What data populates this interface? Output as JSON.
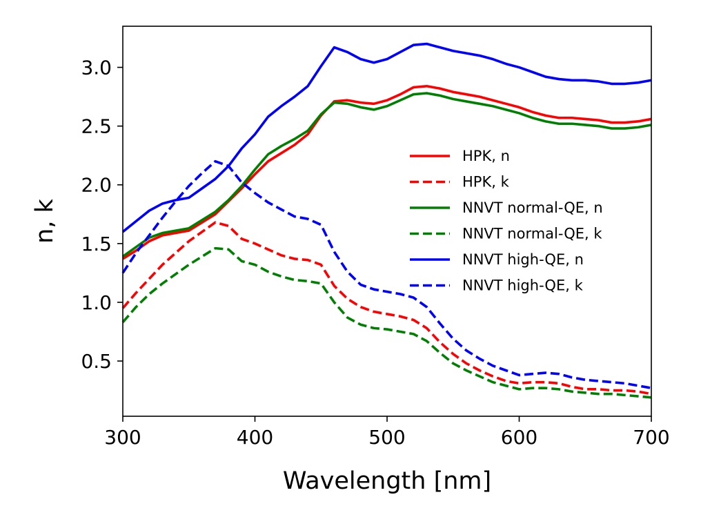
{
  "chart_data": {
    "type": "line",
    "title": "",
    "xlabel": "Wavelength [nm]",
    "ylabel": "n, k",
    "xlim": [
      300,
      700
    ],
    "ylim": [
      0.03,
      3.35
    ],
    "xticks": [
      300,
      400,
      500,
      600,
      700
    ],
    "xtick_labels": [
      "300",
      "400",
      "500",
      "600",
      "700"
    ],
    "yticks": [
      0.5,
      1.0,
      1.5,
      2.0,
      2.5,
      3.0
    ],
    "ytick_labels": [
      "0.5",
      "1.0",
      "1.5",
      "2.0",
      "2.5",
      "3.0"
    ],
    "grid": false,
    "legend_position": "center-right",
    "series": [
      {
        "name": "HPK, n",
        "color": "#ff0000",
        "style": "solid",
        "x": [
          300,
          310,
          320,
          330,
          340,
          350,
          360,
          370,
          380,
          390,
          400,
          410,
          420,
          430,
          440,
          450,
          460,
          470,
          480,
          490,
          500,
          510,
          520,
          530,
          540,
          550,
          560,
          570,
          580,
          590,
          600,
          610,
          620,
          630,
          640,
          650,
          660,
          670,
          680,
          690,
          700
        ],
        "y": [
          1.37,
          1.44,
          1.52,
          1.57,
          1.59,
          1.61,
          1.68,
          1.75,
          1.86,
          1.97,
          2.09,
          2.2,
          2.27,
          2.34,
          2.43,
          2.59,
          2.71,
          2.72,
          2.7,
          2.69,
          2.72,
          2.77,
          2.83,
          2.84,
          2.82,
          2.79,
          2.77,
          2.75,
          2.72,
          2.69,
          2.66,
          2.62,
          2.59,
          2.57,
          2.57,
          2.56,
          2.55,
          2.53,
          2.53,
          2.54,
          2.56
        ]
      },
      {
        "name": "HPK, k",
        "color": "#ff0000",
        "style": "dashed",
        "x": [
          300,
          310,
          320,
          330,
          340,
          350,
          360,
          370,
          380,
          390,
          400,
          410,
          420,
          430,
          440,
          450,
          460,
          470,
          480,
          490,
          500,
          510,
          520,
          530,
          540,
          550,
          560,
          570,
          580,
          590,
          600,
          610,
          620,
          630,
          640,
          650,
          660,
          670,
          680,
          690,
          700
        ],
        "y": [
          0.95,
          1.08,
          1.2,
          1.32,
          1.42,
          1.52,
          1.6,
          1.68,
          1.65,
          1.54,
          1.5,
          1.45,
          1.4,
          1.37,
          1.36,
          1.32,
          1.14,
          1.03,
          0.96,
          0.92,
          0.9,
          0.88,
          0.85,
          0.78,
          0.66,
          0.56,
          0.48,
          0.42,
          0.37,
          0.33,
          0.31,
          0.32,
          0.32,
          0.31,
          0.28,
          0.26,
          0.26,
          0.25,
          0.25,
          0.24,
          0.22
        ]
      },
      {
        "name": "NNVT normal-QE, n",
        "color": "#008000",
        "style": "solid",
        "x": [
          300,
          310,
          320,
          330,
          340,
          350,
          360,
          370,
          380,
          390,
          400,
          410,
          420,
          430,
          440,
          450,
          460,
          470,
          480,
          490,
          500,
          510,
          520,
          530,
          540,
          550,
          560,
          570,
          580,
          590,
          600,
          610,
          620,
          630,
          640,
          650,
          660,
          670,
          680,
          690,
          700
        ],
        "y": [
          1.39,
          1.47,
          1.55,
          1.59,
          1.61,
          1.63,
          1.7,
          1.77,
          1.87,
          1.99,
          2.13,
          2.26,
          2.33,
          2.39,
          2.46,
          2.6,
          2.7,
          2.69,
          2.66,
          2.64,
          2.67,
          2.72,
          2.77,
          2.78,
          2.76,
          2.73,
          2.71,
          2.69,
          2.67,
          2.64,
          2.61,
          2.57,
          2.54,
          2.52,
          2.52,
          2.51,
          2.5,
          2.48,
          2.48,
          2.49,
          2.51
        ]
      },
      {
        "name": "NNVT normal-QE, k",
        "color": "#008000",
        "style": "dashed",
        "x": [
          300,
          310,
          320,
          330,
          340,
          350,
          360,
          370,
          380,
          390,
          400,
          410,
          420,
          430,
          440,
          450,
          460,
          470,
          480,
          490,
          500,
          510,
          520,
          530,
          540,
          550,
          560,
          570,
          580,
          590,
          600,
          610,
          620,
          630,
          640,
          650,
          660,
          670,
          680,
          690,
          700
        ],
        "y": [
          0.83,
          0.96,
          1.07,
          1.16,
          1.24,
          1.32,
          1.39,
          1.46,
          1.45,
          1.35,
          1.32,
          1.26,
          1.22,
          1.19,
          1.18,
          1.16,
          1.0,
          0.87,
          0.81,
          0.78,
          0.77,
          0.75,
          0.73,
          0.67,
          0.57,
          0.48,
          0.42,
          0.37,
          0.32,
          0.29,
          0.26,
          0.27,
          0.27,
          0.26,
          0.24,
          0.23,
          0.22,
          0.22,
          0.21,
          0.2,
          0.19
        ]
      },
      {
        "name": "NNVT high-QE, n",
        "color": "#0000ff",
        "style": "solid",
        "x": [
          300,
          310,
          320,
          330,
          340,
          350,
          360,
          370,
          380,
          390,
          400,
          410,
          420,
          430,
          440,
          450,
          460,
          470,
          480,
          490,
          500,
          510,
          520,
          530,
          540,
          550,
          560,
          570,
          580,
          590,
          600,
          610,
          620,
          630,
          640,
          650,
          660,
          670,
          680,
          690,
          700
        ],
        "y": [
          1.6,
          1.69,
          1.78,
          1.84,
          1.87,
          1.89,
          1.97,
          2.05,
          2.16,
          2.31,
          2.43,
          2.58,
          2.67,
          2.75,
          2.84,
          3.01,
          3.17,
          3.13,
          3.07,
          3.04,
          3.07,
          3.13,
          3.19,
          3.2,
          3.17,
          3.14,
          3.12,
          3.1,
          3.07,
          3.03,
          3.0,
          2.96,
          2.92,
          2.9,
          2.89,
          2.89,
          2.88,
          2.86,
          2.86,
          2.87,
          2.89
        ]
      },
      {
        "name": "NNVT high-QE, k",
        "color": "#0000ff",
        "style": "dashed",
        "x": [
          300,
          310,
          320,
          330,
          340,
          350,
          360,
          370,
          380,
          390,
          400,
          410,
          420,
          430,
          440,
          450,
          460,
          470,
          480,
          490,
          500,
          510,
          520,
          530,
          540,
          550,
          560,
          570,
          580,
          590,
          600,
          610,
          620,
          630,
          640,
          650,
          660,
          670,
          680,
          690,
          700
        ],
        "y": [
          1.25,
          1.42,
          1.57,
          1.72,
          1.86,
          1.99,
          2.1,
          2.2,
          2.16,
          2.02,
          1.93,
          1.85,
          1.79,
          1.73,
          1.71,
          1.66,
          1.43,
          1.26,
          1.15,
          1.11,
          1.09,
          1.07,
          1.04,
          0.96,
          0.82,
          0.69,
          0.59,
          0.52,
          0.46,
          0.42,
          0.38,
          0.39,
          0.4,
          0.39,
          0.36,
          0.34,
          0.33,
          0.32,
          0.31,
          0.29,
          0.27
        ]
      }
    ]
  }
}
